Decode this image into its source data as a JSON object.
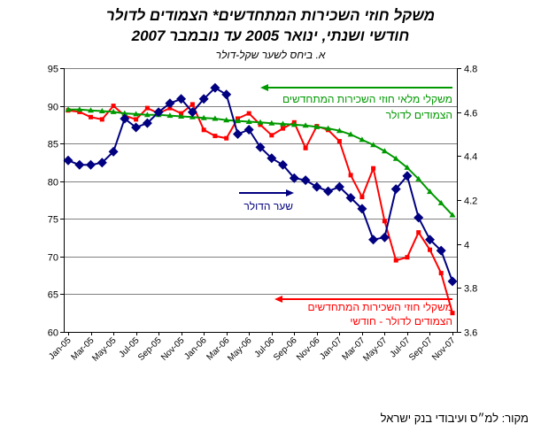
{
  "chart_data": {
    "type": "line",
    "title_lines": [
      "משקל חוזי השכירות המתחדשים* הצמודים לדולר",
      "חודשי ושנתי, ינואר 2005 עד נובמבר 2007"
    ],
    "subtitle": "א. ביחס לשער שקל-דולר",
    "x_tick_labels": [
      "Jan-05",
      "Mar-05",
      "May-05",
      "Jul-05",
      "Sep-05",
      "Nov-05",
      "Jan-06",
      "Mar-06",
      "May-06",
      "Jul-06",
      "Sep-06",
      "Nov-06",
      "Jan-07",
      "Mar-07",
      "May-07",
      "Jul-07",
      "Sep-07",
      "Nov-07"
    ],
    "y_left": {
      "min": 60,
      "max": 95,
      "ticks": [
        60,
        65,
        70,
        75,
        80,
        85,
        90,
        95
      ]
    },
    "y_right": {
      "min": 3.6,
      "max": 4.8,
      "ticks": [
        3.6,
        3.8,
        4,
        4.2,
        4.4,
        4.6,
        4.8
      ]
    },
    "grid": true,
    "legend_placement": "inside-plot",
    "series": [
      {
        "label_lines": [
          "משקלי חוזי השכירות המתחדשים",
          "הצמודים לדולר - חודשי"
        ],
        "axis": "left",
        "color": "#ff0000",
        "marker": "square",
        "values": [
          89.4,
          89.2,
          88.5,
          88.2,
          90.0,
          88.7,
          88.2,
          89.7,
          89.0,
          89.7,
          89.0,
          90.2,
          86.8,
          86.0,
          85.7,
          88.3,
          89.0,
          87.5,
          86.1,
          87.0,
          87.8,
          84.4,
          87.3,
          86.8,
          85.3,
          80.8,
          77.9,
          81.7,
          74.7,
          69.5,
          69.9,
          73.2,
          70.9,
          67.8,
          62.5
        ]
      },
      {
        "label_lines": [
          "משקלי מלאי חוזי השכירות המתחדשים",
          "הצמודים לדולר"
        ],
        "axis": "left",
        "color": "#009900",
        "marker": "triangle",
        "values": [
          89.5,
          89.5,
          89.4,
          89.3,
          89.2,
          89.0,
          88.9,
          88.8,
          88.8,
          88.7,
          88.6,
          88.5,
          88.4,
          88.3,
          88.1,
          88.0,
          87.9,
          87.8,
          87.7,
          87.6,
          87.5,
          87.4,
          87.2,
          87.0,
          86.7,
          86.2,
          85.5,
          84.8,
          84.0,
          83.0,
          81.8,
          80.3,
          78.6,
          77.1,
          75.5
        ]
      },
      {
        "label_lines": [
          "שער הדולר"
        ],
        "axis": "right",
        "color": "#000080",
        "marker": "diamond",
        "values": [
          4.38,
          4.36,
          4.36,
          4.37,
          4.42,
          4.57,
          4.53,
          4.55,
          4.6,
          4.64,
          4.66,
          4.6,
          4.66,
          4.71,
          4.68,
          4.5,
          4.52,
          4.44,
          4.39,
          4.36,
          4.3,
          4.29,
          4.26,
          4.24,
          4.26,
          4.21,
          4.16,
          4.02,
          4.03,
          4.25,
          4.31,
          4.12,
          4.02,
          3.97,
          3.83
        ]
      }
    ]
  },
  "source": "מקור: למ״ס ועיבודי בנק ישראל"
}
